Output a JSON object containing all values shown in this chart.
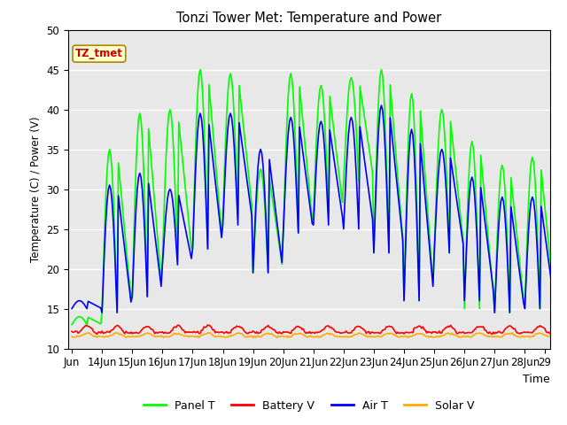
{
  "title": "Tonzi Tower Met: Temperature and Power",
  "xlabel": "Time",
  "ylabel": "Temperature (C) / Power (V)",
  "ylim": [
    10,
    50
  ],
  "yticks": [
    10,
    15,
    20,
    25,
    30,
    35,
    40,
    45,
    50
  ],
  "x_tick_labels": [
    "Jun",
    "14Jun",
    "15Jun",
    "16Jun",
    "17Jun",
    "18Jun",
    "19Jun",
    "20Jun",
    "21Jun",
    "22Jun",
    "23Jun",
    "24Jun",
    "25Jun",
    "26Jun",
    "27Jun",
    "28Jun",
    "29"
  ],
  "annotation_text": "TZ_tmet",
  "bg_color": "#e8e8e8",
  "panel_t_color": "#00ff00",
  "battery_v_color": "#ff0000",
  "air_t_color": "#0000ff",
  "solar_v_color": "#ffaa00",
  "legend_labels": [
    "Panel T",
    "Battery V",
    "Air T",
    "Solar V"
  ],
  "line_width": 1.2,
  "days_data": [
    [
      0,
      14,
      16,
      13,
      15
    ],
    [
      24,
      35,
      30.5,
      14.5,
      14.5
    ],
    [
      48,
      39.5,
      32,
      16.5,
      16.5
    ],
    [
      72,
      40,
      30,
      21,
      20.5
    ],
    [
      96,
      45,
      39.5,
      22.5,
      22.5
    ],
    [
      120,
      44.5,
      39.5,
      26.5,
      25.5
    ],
    [
      144,
      32.5,
      35,
      19.5,
      19.5
    ],
    [
      168,
      44.5,
      39,
      24.5,
      24.5
    ],
    [
      192,
      43,
      38.5,
      27,
      25.5
    ],
    [
      216,
      44,
      39,
      31,
      25
    ],
    [
      240,
      45,
      40.5,
      22,
      22
    ],
    [
      264,
      42,
      37.5,
      16,
      16
    ],
    [
      288,
      40,
      35,
      22,
      22
    ],
    [
      312,
      36,
      31.5,
      15,
      16
    ],
    [
      336,
      33,
      29,
      14.5,
      14.5
    ],
    [
      360,
      34,
      29,
      15,
      15
    ]
  ]
}
